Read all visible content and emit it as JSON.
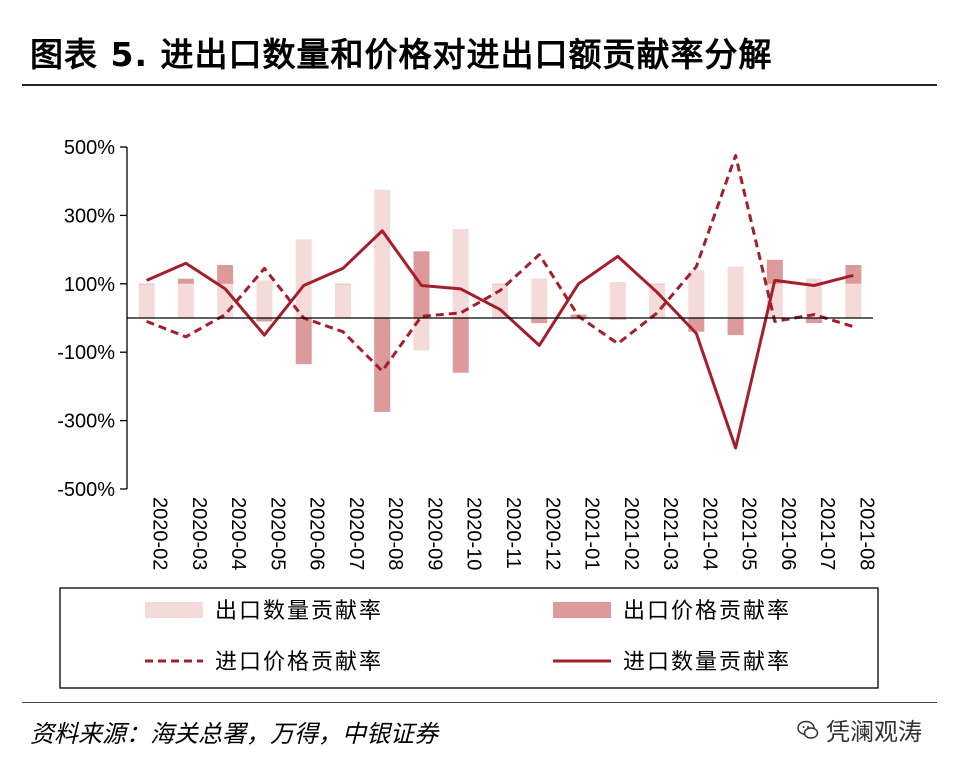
{
  "header": {
    "title": "图表 5. 进出口数量和价格对进出口额贡献率分解"
  },
  "footer": {
    "source": "资料来源：海关总署，万得，中银证券",
    "watermark": "凭澜观涛"
  },
  "colors": {
    "export_qty": "#f5dada",
    "export_price": "#dc9a9a",
    "import_price": "#a31f2c",
    "import_qty": "#a31f2c",
    "axis": "#000000"
  },
  "chart_data": {
    "type": "bar",
    "categories": [
      "2020-02",
      "2020-03",
      "2020-04",
      "2020-05",
      "2020-06",
      "2020-07",
      "2020-08",
      "2020-09",
      "2020-10",
      "2020-11",
      "2020-12",
      "2021-01",
      "2021-02",
      "2021-03",
      "2021-04",
      "2021-05",
      "2021-06",
      "2021-07",
      "2021-08"
    ],
    "ylim": [
      -500,
      500
    ],
    "yticks": [
      500,
      300,
      100,
      -100,
      -300,
      -500
    ],
    "ytick_labels": [
      "500%",
      "300%",
      "100%",
      "-100%",
      "-300%",
      "-500%"
    ],
    "legend_position": "bottom",
    "series": [
      {
        "name": "出口数量贡献率",
        "kind": "bar",
        "color": "#f5dada",
        "values": [
          100,
          100,
          100,
          110,
          230,
          100,
          375,
          -95,
          260,
          100,
          115,
          -5,
          105,
          100,
          140,
          150,
          100,
          115,
          100
        ]
      },
      {
        "name": "出口价格贡献率",
        "kind": "bar",
        "color": "#dc9a9a",
        "values": [
          0,
          15,
          55,
          -10,
          -135,
          0,
          -275,
          195,
          -160,
          0,
          -15,
          10,
          -5,
          0,
          -40,
          -50,
          70,
          -15,
          55
        ]
      },
      {
        "name": "进口价格贡献率",
        "kind": "line",
        "style": "dashed",
        "color": "#a31f2c",
        "values": [
          -10,
          -55,
          10,
          145,
          0,
          -40,
          -155,
          5,
          15,
          80,
          185,
          5,
          -75,
          15,
          150,
          475,
          -10,
          10,
          -25
        ]
      },
      {
        "name": "进口数量贡献率",
        "kind": "line",
        "style": "solid",
        "color": "#a31f2c",
        "values": [
          110,
          160,
          85,
          -50,
          95,
          145,
          255,
          95,
          85,
          25,
          -80,
          100,
          180,
          75,
          -45,
          -380,
          110,
          95,
          125
        ]
      }
    ]
  }
}
